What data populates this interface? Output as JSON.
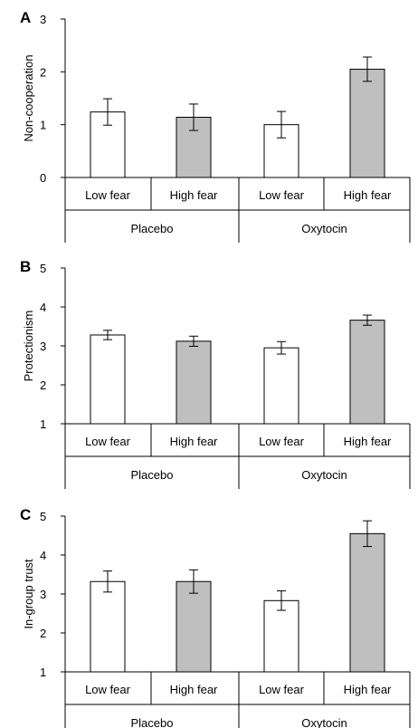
{
  "chart_data": [
    {
      "type": "bar",
      "panel_label": "A",
      "ylabel": "Non-cooperation",
      "ylim": [
        0,
        3
      ],
      "yticks": [
        "0",
        "1",
        "2",
        "3"
      ],
      "groups": [
        "Placebo",
        "Oxytocin"
      ],
      "categories": [
        "Low fear",
        "High fear",
        "Low fear",
        "High fear"
      ],
      "values": [
        1.24,
        1.14,
        1.0,
        2.05
      ],
      "errors": [
        0.25,
        0.25,
        0.25,
        0.23
      ],
      "bar_fill": [
        "white",
        "gray",
        "white",
        "gray"
      ]
    },
    {
      "type": "bar",
      "panel_label": "B",
      "ylabel": "Protectionism",
      "ylim": [
        1,
        5
      ],
      "yticks": [
        "1",
        "2",
        "3",
        "4",
        "5"
      ],
      "groups": [
        "Placebo",
        "Oxytocin"
      ],
      "categories": [
        "Low fear",
        "High fear",
        "Low fear",
        "High fear"
      ],
      "values": [
        3.28,
        3.12,
        2.95,
        3.66
      ],
      "errors": [
        0.12,
        0.13,
        0.16,
        0.13
      ],
      "bar_fill": [
        "white",
        "gray",
        "white",
        "gray"
      ]
    },
    {
      "type": "bar",
      "panel_label": "C",
      "ylabel": "In-group trust",
      "ylim": [
        1,
        5
      ],
      "yticks": [
        "1",
        "2",
        "3",
        "4",
        "5"
      ],
      "groups": [
        "Placebo",
        "Oxytocin"
      ],
      "categories": [
        "Low fear",
        "High fear",
        "Low fear",
        "High fear"
      ],
      "values": [
        3.32,
        3.32,
        2.83,
        4.55
      ],
      "errors": [
        0.27,
        0.3,
        0.25,
        0.33
      ],
      "bar_fill": [
        "white",
        "gray",
        "white",
        "gray"
      ]
    }
  ],
  "colors": {
    "white_bar": "#ffffff",
    "gray_bar": "#bfbfbf",
    "axis": "#000000"
  }
}
